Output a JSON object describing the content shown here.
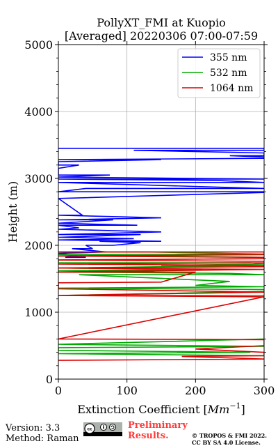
{
  "chart_data": {
    "type": "line",
    "title": "PollyXT_FMI at Kuopio",
    "subtitle": "[Averaged] 20220306 07:00-07:59",
    "xlabel": "Extinction Coefficient [",
    "xlabel_unit_base": "Mm",
    "xlabel_unit_exp": "−1",
    "xlabel_close": "]",
    "ylabel": "Height (m)",
    "xlim": [
      0,
      300
    ],
    "ylim": [
      0,
      5000
    ],
    "x_ticks": [
      0,
      100,
      200,
      300
    ],
    "y_ticks": [
      0,
      1000,
      2000,
      3000,
      4000,
      5000
    ],
    "grid": true,
    "legend_position": "top-right",
    "series": [
      {
        "name": "355 nm",
        "color": "#0000ff",
        "x": [
          0,
          300,
          300,
          110,
          300,
          300,
          250,
          300,
          300,
          0,
          150,
          0,
          0,
          30,
          0,
          0,
          75,
          0,
          300,
          0,
          230,
          300,
          0,
          300,
          40,
          0,
          300,
          300,
          0,
          35,
          0,
          150,
          0,
          80,
          0,
          115,
          0,
          30,
          0,
          150,
          0,
          120,
          0,
          110,
          0,
          150,
          60,
          120,
          80,
          40,
          50,
          20,
          70,
          0,
          30,
          10,
          40
        ],
        "y": [
          3450,
          3450,
          3420,
          3420,
          3380,
          3340,
          3340,
          3320,
          3300,
          3280,
          3280,
          3250,
          3200,
          3200,
          3150,
          3050,
          3050,
          3020,
          2990,
          2990,
          2970,
          2940,
          2940,
          2850,
          2850,
          2800,
          2800,
          2790,
          2700,
          2450,
          2450,
          2410,
          2380,
          2380,
          2330,
          2300,
          2300,
          2260,
          2240,
          2200,
          2160,
          2160,
          2120,
          2100,
          2080,
          2060,
          2060,
          2040,
          2000,
          2000,
          1950,
          1950,
          1900,
          1880,
          1840,
          1820,
          1820
        ]
      },
      {
        "name": "532 nm",
        "color": "#00aa00",
        "x": [
          0,
          130,
          300,
          300,
          0,
          300,
          300,
          0,
          0,
          0,
          280,
          300,
          150,
          300,
          0,
          210,
          0,
          140,
          0,
          250,
          300,
          30,
          250,
          200,
          300,
          0,
          300,
          300,
          0,
          300,
          300,
          0,
          300,
          0,
          0,
          280,
          0,
          300
        ],
        "y": [
          1900,
          1900,
          1870,
          1870,
          1860,
          1820,
          1800,
          1780,
          1760,
          1740,
          1740,
          1720,
          1700,
          1700,
          1660,
          1640,
          1620,
          1610,
          1600,
          1580,
          1560,
          1560,
          1460,
          1400,
          1380,
          1360,
          1340,
          1310,
          1250,
          1250,
          600,
          520,
          490,
          470,
          430,
          400,
          380,
          350
        ]
      },
      {
        "name": "1064 nm",
        "color": "#dd0000",
        "x": [
          0,
          300,
          300,
          0,
          300,
          300,
          0,
          300,
          300,
          0,
          300,
          300,
          0,
          300,
          0,
          200,
          150,
          0,
          0,
          300,
          0,
          300,
          0,
          300,
          300,
          200,
          300,
          300,
          300,
          180,
          300,
          0
        ],
        "y": [
          1900,
          1900,
          1860,
          1840,
          1820,
          1800,
          1780,
          1760,
          1740,
          1720,
          1700,
          1680,
          1660,
          1640,
          1600,
          1600,
          1450,
          1440,
          1350,
          1300,
          1250,
          1230,
          600,
          590,
          500,
          450,
          400,
          380,
          350,
          340,
          300,
          280
        ]
      }
    ]
  },
  "footer": {
    "version": "Version: 3.3",
    "method": "Method: Raman",
    "preliminary_line1": "Preliminary",
    "preliminary_line2": "Results.",
    "copyright_line1": "© TROPOS & FMI 2022.",
    "copyright_line2": "CC BY SA 4.0 License."
  },
  "icons": {
    "license_badge": "cc-by-sa-icon"
  }
}
